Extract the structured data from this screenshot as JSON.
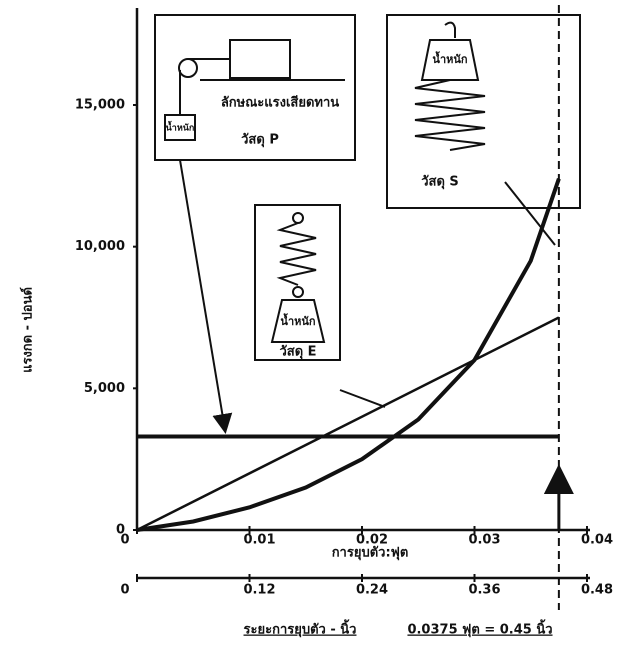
{
  "chart_data": {
    "type": "line",
    "y_label": "แรงกด - ปอนด์",
    "x_label": "การยุบตัว:ฟุต",
    "x2_label": "ระยะการยุบตัว - นิ้ว",
    "note": "0.0375 ฟุต = 0.45 นิ้ว",
    "weight_label": "น้ำหนัก",
    "friction_label": "ลักษณะแรงเสียดทาน",
    "xlim": [
      0,
      0.04
    ],
    "xticks": [
      0,
      0.01,
      0.02,
      0.03,
      0.04
    ],
    "x2lim": [
      0,
      0.48
    ],
    "x2ticks": [
      0,
      0.12,
      0.24,
      0.36,
      0.48
    ],
    "ylim": [
      0,
      18000
    ],
    "yticks": [
      0,
      {
        "value": 5000,
        "label": "5,000"
      },
      {
        "value": 10000,
        "label": "10,000"
      },
      {
        "value": 15000,
        "label": "15,000"
      }
    ],
    "limit_x": 0.0375,
    "series": [
      {
        "name": "วัสดุ P",
        "color": "#111111",
        "x": [
          0,
          0.0375
        ],
        "values": [
          3300,
          3300
        ]
      },
      {
        "name": "วัสดุ E",
        "color": "#111111",
        "x": [
          0,
          0.0375
        ],
        "values": [
          0,
          7500
        ]
      },
      {
        "name": "วัสดุ S",
        "color": "#111111",
        "x": [
          0,
          0.005,
          0.01,
          0.015,
          0.02,
          0.025,
          0.03,
          0.035,
          0.0375
        ],
        "values": [
          0,
          300,
          800,
          1500,
          2500,
          3900,
          6000,
          9500,
          12400
        ]
      }
    ]
  }
}
